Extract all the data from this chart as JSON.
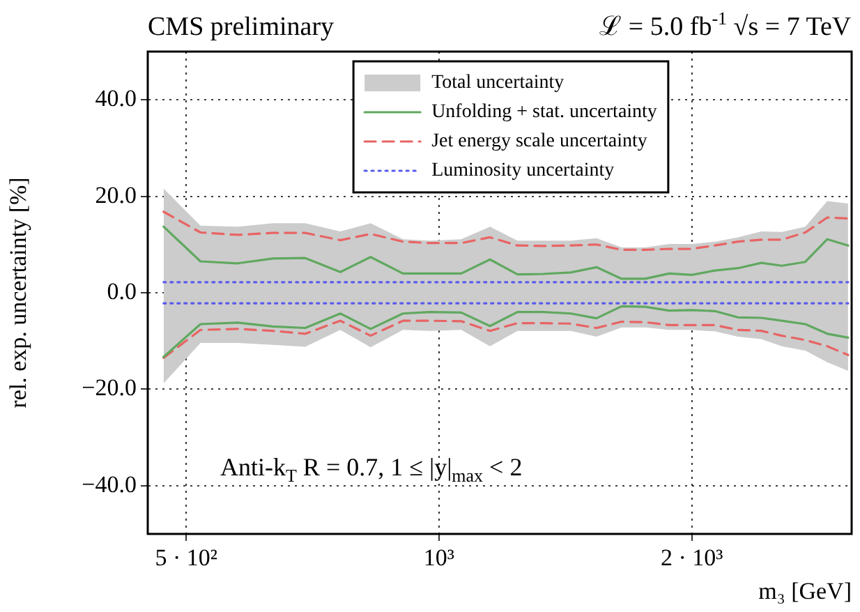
{
  "chart_data": {
    "type": "line",
    "title": "CMS preliminary",
    "subtitle": "ℒ = 5.0 fb$^{-1}$ √s = 7 TeV",
    "xlabel": "m₃ [GeV]",
    "ylabel": "rel. exp. uncertainty [%]",
    "annotations": [
      "Anti-k$_{T}$ R = 0.7, 1 ≤ |y|$_{max}$ < 2"
    ],
    "x": [
      470,
      520,
      576,
      634,
      693,
      763,
      829,
      906,
      975,
      1063,
      1150,
      1240,
      1330,
      1435,
      1540,
      1650,
      1760,
      1880,
      2000,
      2130,
      2270,
      2420,
      2560,
      2730,
      2900,
      3070
    ],
    "series": [
      {
        "name": "Total uncertainty",
        "type": "area",
        "color": "#cccccc",
        "values": [
          null,
          null,
          null,
          null,
          null,
          null,
          null,
          null,
          null,
          null,
          null,
          null,
          null,
          null,
          null,
          null,
          null,
          null,
          null,
          null,
          null,
          null,
          null,
          null,
          null,
          null
        ],
        "upper": [
          21.6,
          13.9,
          13.7,
          14.4,
          14.4,
          12.7,
          14.4,
          11.1,
          10.8,
          11.1,
          13.7,
          10.8,
          10.8,
          10.8,
          11.3,
          9.4,
          9.4,
          10.1,
          10.1,
          10.6,
          11.5,
          12.7,
          12.6,
          13.7,
          19.0,
          18.5
        ],
        "lower": [
          -18.8,
          -10.4,
          -10.4,
          -10.8,
          -11.2,
          -7.7,
          -11.3,
          -7.7,
          -7.9,
          -7.7,
          -11.1,
          -7.9,
          -7.9,
          -7.9,
          -9.1,
          -7.2,
          -7.2,
          -7.7,
          -7.7,
          -8.0,
          -9.1,
          -9.6,
          -11.1,
          -12.0,
          -14.4,
          -16.2
        ]
      },
      {
        "name": "Unfolding + stat. uncertainty",
        "color": "#60a860",
        "line_style": "solid",
        "values": [
          13.7,
          6.5,
          6.1,
          7.1,
          7.2,
          4.3,
          7.4,
          4.0,
          4.0,
          4.0,
          6.9,
          3.8,
          3.9,
          4.2,
          5.3,
          2.9,
          2.9,
          4.0,
          3.7,
          4.6,
          5.1,
          6.2,
          5.6,
          6.4,
          11.1,
          9.8
        ]
      },
      {
        "color": "#60a860",
        "line_style": "solid",
        "values": [
          -13.3,
          -6.5,
          -6.2,
          -7.0,
          -7.3,
          -4.3,
          -7.5,
          -4.3,
          -4.0,
          -4.1,
          -6.9,
          -4.0,
          -4.0,
          -4.3,
          -5.3,
          -2.8,
          -2.9,
          -3.7,
          -3.6,
          -3.8,
          -5.1,
          -5.2,
          -5.8,
          -6.5,
          -8.5,
          -9.3
        ]
      },
      {
        "name": "Jet energy scale uncertainty",
        "color": "#e86464",
        "line_style": "dashed",
        "values": [
          16.8,
          12.5,
          12.0,
          12.4,
          12.4,
          10.9,
          12.2,
          10.6,
          10.3,
          10.3,
          11.5,
          9.8,
          9.7,
          9.8,
          10.0,
          8.9,
          8.9,
          9.1,
          9.1,
          9.8,
          10.6,
          11.0,
          11.0,
          12.5,
          15.6,
          15.4
        ]
      },
      {
        "color": "#e86464",
        "line_style": "dashed",
        "values": [
          -13.5,
          -7.7,
          -7.5,
          -7.9,
          -8.5,
          -5.8,
          -8.9,
          -5.8,
          -5.8,
          -5.9,
          -7.9,
          -6.3,
          -6.3,
          -6.4,
          -7.3,
          -6.0,
          -6.1,
          -6.7,
          -6.7,
          -6.7,
          -7.7,
          -7.9,
          -8.9,
          -9.8,
          -11.1,
          -12.9
        ]
      },
      {
        "name": "Luminosity uncertainty",
        "color": "#5a5aee",
        "line_style": "dotted",
        "values": [
          2.2,
          2.2,
          2.2,
          2.2,
          2.2,
          2.2,
          2.2,
          2.2,
          2.2,
          2.2,
          2.2,
          2.2,
          2.2,
          2.2,
          2.2,
          2.2,
          2.2,
          2.2,
          2.2,
          2.2,
          2.2,
          2.2,
          2.2,
          2.2,
          2.2,
          2.2
        ]
      },
      {
        "color": "#5a5aee",
        "line_style": "dotted",
        "values": [
          -2.2,
          -2.2,
          -2.2,
          -2.2,
          -2.2,
          -2.2,
          -2.2,
          -2.2,
          -2.2,
          -2.2,
          -2.2,
          -2.2,
          -2.2,
          -2.2,
          -2.2,
          -2.2,
          -2.2,
          -2.2,
          -2.2,
          -2.2,
          -2.2,
          -2.2,
          -2.2,
          -2.2,
          -2.2,
          -2.2
        ]
      }
    ],
    "xlim": [
      450,
      3100
    ],
    "ylim": [
      -50,
      50
    ],
    "xticks": [
      {
        "value": 500,
        "label": "5 · 10²"
      },
      {
        "value": 1000,
        "label": "10³"
      },
      {
        "value": 2000,
        "label": "2 · 10³"
      }
    ],
    "yticks": [
      {
        "value": -40,
        "label": "−40.0"
      },
      {
        "value": -20,
        "label": "−20.0"
      },
      {
        "value": 0,
        "label": "0.0"
      },
      {
        "value": 20,
        "label": "20.0"
      },
      {
        "value": 40,
        "label": "40.0"
      }
    ],
    "log": "x",
    "grid": true,
    "legend": "top"
  }
}
